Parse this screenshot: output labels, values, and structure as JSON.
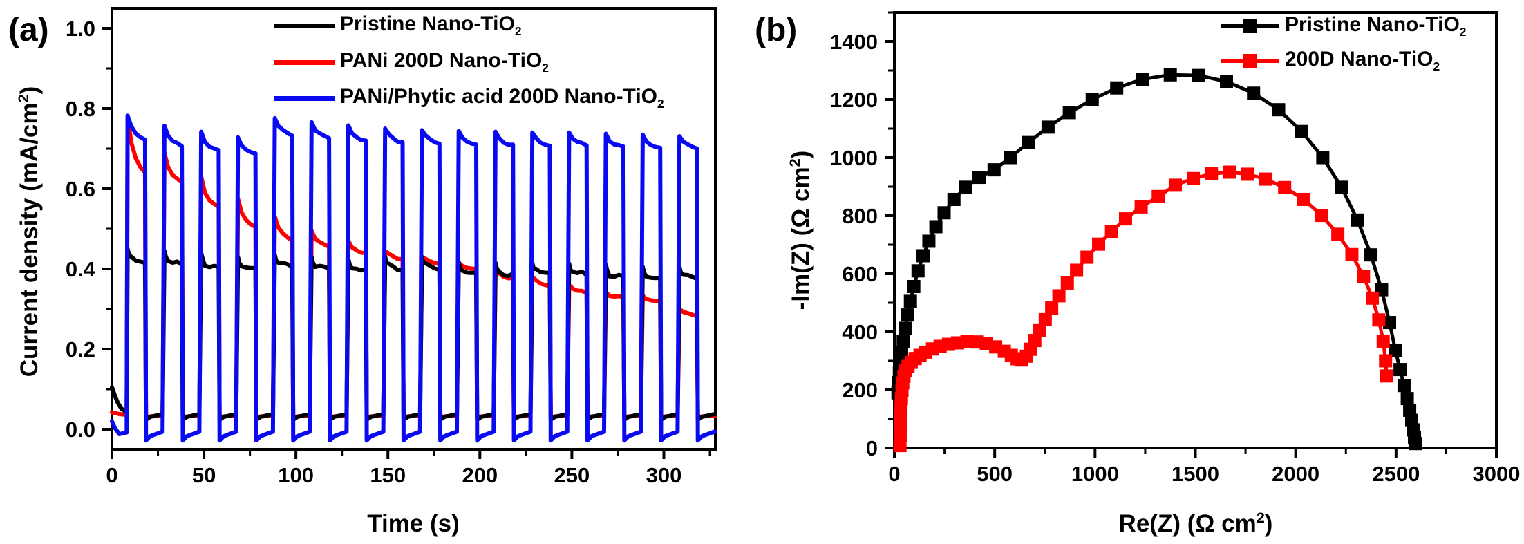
{
  "figure": {
    "background": "#ffffff"
  },
  "chart_data": [
    {
      "type": "line",
      "panel_label": "(a)",
      "title": "",
      "xlabel": {
        "pre": "Time (s)",
        "sup": "",
        "post": ""
      },
      "ylabel": {
        "pre": "Current density (mA/cm",
        "sup": "2",
        "post": ")"
      },
      "xlim": [
        0,
        328
      ],
      "ylim": [
        -0.05,
        1.05
      ],
      "grid": false,
      "legend_position": "top-right-inside",
      "x_major_ticks": [
        0,
        50,
        100,
        150,
        200,
        250,
        300
      ],
      "x_major_labels": [
        "0",
        "50",
        "100",
        "150",
        "200",
        "250",
        "300"
      ],
      "x_minor_ticks": [
        25,
        75,
        125,
        175,
        225,
        275,
        325
      ],
      "y_major_ticks": [
        0.0,
        0.2,
        0.4,
        0.6,
        0.8,
        1.0
      ],
      "y_major_labels": [
        "0.0",
        "0.2",
        "0.4",
        "0.6",
        "0.8",
        "1.0"
      ],
      "y_minor_ticks": [
        0.1,
        0.3,
        0.5,
        0.7,
        0.9
      ],
      "light_chopping": {
        "first_on_s": 8,
        "on_duration_s": 10,
        "period_s": 20,
        "cycles": 16
      },
      "series": [
        {
          "label": "Pristine Nano-TiO",
          "label_sub": "2",
          "color": "#000000",
          "line_width": 6,
          "off_level": 0.038,
          "off_dip": 0.024,
          "on_spike": 0.015,
          "noise": 0.008,
          "pre": [
            [
              0,
              0.105
            ],
            [
              1.5,
              0.085
            ],
            [
              3,
              0.068
            ],
            [
              5,
              0.052
            ],
            [
              8,
              0.042
            ]
          ],
          "pulses": [
            [
              8,
              18,
              0.435,
              0.415
            ],
            [
              28,
              38,
              0.43,
              0.41
            ],
            [
              48,
              58,
              0.425,
              0.405
            ],
            [
              68,
              78,
              0.415,
              0.402
            ],
            [
              88,
              98,
              0.42,
              0.405
            ],
            [
              108,
              118,
              0.415,
              0.4
            ],
            [
              128,
              138,
              0.41,
              0.4
            ],
            [
              148,
              158,
              0.415,
              0.4
            ],
            [
              168,
              178,
              0.415,
              0.398
            ],
            [
              188,
              198,
              0.402,
              0.39
            ],
            [
              208,
              218,
              0.4,
              0.388
            ],
            [
              228,
              238,
              0.4,
              0.39
            ],
            [
              248,
              258,
              0.398,
              0.385
            ],
            [
              268,
              278,
              0.395,
              0.382
            ],
            [
              288,
              298,
              0.39,
              0.378
            ],
            [
              308,
              318,
              0.39,
              0.375
            ]
          ]
        },
        {
          "label": "PANi 200D Nano-TiO",
          "label_sub": "2",
          "color": "#fe0000",
          "line_width": 6,
          "off_level": 0.034,
          "off_dip": 0.03,
          "on_spike": 0,
          "noise": 0.004,
          "pre": [
            [
              0,
              0.042
            ],
            [
              4,
              0.038
            ],
            [
              8,
              0.036
            ]
          ],
          "pulses": [
            [
              8,
              18,
              0.78,
              0.64
            ],
            [
              28,
              38,
              0.69,
              0.615
            ],
            [
              48,
              58,
              0.63,
              0.555
            ],
            [
              68,
              78,
              0.575,
              0.505
            ],
            [
              88,
              98,
              0.53,
              0.47
            ],
            [
              108,
              118,
              0.495,
              0.455
            ],
            [
              128,
              138,
              0.47,
              0.44
            ],
            [
              148,
              158,
              0.445,
              0.425
            ],
            [
              168,
              178,
              0.43,
              0.412
            ],
            [
              188,
              198,
              0.415,
              0.4
            ],
            [
              208,
              218,
              0.4,
              0.378
            ],
            [
              228,
              238,
              0.38,
              0.358
            ],
            [
              248,
              258,
              0.36,
              0.34
            ],
            [
              268,
              278,
              0.342,
              0.33
            ],
            [
              288,
              298,
              0.333,
              0.32
            ],
            [
              308,
              318,
              0.3,
              0.282
            ]
          ]
        },
        {
          "label": "PANi/Phytic acid 200D Nano-TiO",
          "label_sub": "2",
          "color": "#0a0af2",
          "line_width": 6,
          "off_level": -0.006,
          "off_dip": -0.028,
          "on_spike": 0,
          "noise": 0.004,
          "pre": [
            [
              0,
              0.02
            ],
            [
              1.5,
              0.004
            ],
            [
              4,
              -0.012
            ],
            [
              8,
              -0.008
            ]
          ],
          "pulses": [
            [
              8,
              18,
              0.782,
              0.722
            ],
            [
              28,
              38,
              0.757,
              0.706
            ],
            [
              48,
              58,
              0.742,
              0.696
            ],
            [
              68,
              78,
              0.728,
              0.688
            ],
            [
              88,
              98,
              0.776,
              0.732
            ],
            [
              108,
              118,
              0.766,
              0.726
            ],
            [
              128,
              138,
              0.758,
              0.72
            ],
            [
              148,
              158,
              0.75,
              0.716
            ],
            [
              168,
              178,
              0.746,
              0.712
            ],
            [
              188,
              198,
              0.744,
              0.71
            ],
            [
              208,
              218,
              0.742,
              0.71
            ],
            [
              228,
              238,
              0.74,
              0.707
            ],
            [
              248,
              258,
              0.74,
              0.708
            ],
            [
              268,
              278,
              0.737,
              0.705
            ],
            [
              288,
              298,
              0.735,
              0.702
            ],
            [
              308,
              318,
              0.731,
              0.7
            ]
          ]
        }
      ]
    },
    {
      "type": "scatter-line",
      "panel_label": "(b)",
      "title": "",
      "xlabel": {
        "pre": "Re(Z) (Ω cm",
        "sup": "2",
        "post": ")"
      },
      "ylabel": {
        "pre": "-Im(Z) (Ω cm",
        "sup": "2",
        "post": ")"
      },
      "xlim": [
        0,
        3000
      ],
      "ylim": [
        0,
        1500
      ],
      "grid": false,
      "legend_position": "top-right-inside",
      "x_major_ticks": [
        0,
        500,
        1000,
        1500,
        2000,
        2500,
        3000
      ],
      "x_major_labels": [
        "0",
        "500",
        "1000",
        "1500",
        "2000",
        "2500",
        "3000"
      ],
      "x_minor_ticks": [
        250,
        750,
        1250,
        1750,
        2250,
        2750
      ],
      "y_major_ticks": [
        0,
        200,
        400,
        600,
        800,
        1000,
        1200,
        1400
      ],
      "y_major_labels": [
        "0",
        "200",
        "400",
        "600",
        "800",
        "1000",
        "1200",
        "1400"
      ],
      "y_minor_ticks": [
        100,
        300,
        500,
        700,
        900,
        1100,
        1300,
        1500
      ],
      "series": [
        {
          "label": "Pristine Nano-TiO",
          "label_sub": "2",
          "color": "#000000",
          "marker": "square",
          "marker_size": 19,
          "line_width": 5,
          "points": [
            [
              18,
              190
            ],
            [
              21,
              225
            ],
            [
              25,
              258
            ],
            [
              30,
              292
            ],
            [
              36,
              328
            ],
            [
              44,
              368
            ],
            [
              54,
              412
            ],
            [
              66,
              458
            ],
            [
              80,
              505
            ],
            [
              97,
              556
            ],
            [
              118,
              610
            ],
            [
              143,
              662
            ],
            [
              172,
              712
            ],
            [
              207,
              762
            ],
            [
              248,
              810
            ],
            [
              297,
              856
            ],
            [
              355,
              898
            ],
            [
              422,
              932
            ],
            [
              497,
              958
            ],
            [
              578,
              1000
            ],
            [
              668,
              1052
            ],
            [
              766,
              1105
            ],
            [
              872,
              1155
            ],
            [
              986,
              1200
            ],
            [
              1108,
              1240
            ],
            [
              1238,
              1270
            ],
            [
              1375,
              1285
            ],
            [
              1515,
              1283
            ],
            [
              1655,
              1262
            ],
            [
              1790,
              1222
            ],
            [
              1915,
              1165
            ],
            [
              2030,
              1090
            ],
            [
              2135,
              1000
            ],
            [
              2228,
              898
            ],
            [
              2308,
              785
            ],
            [
              2375,
              665
            ],
            [
              2428,
              545
            ],
            [
              2468,
              432
            ],
            [
              2497,
              335
            ],
            [
              2520,
              270
            ],
            [
              2540,
              215
            ],
            [
              2556,
              170
            ],
            [
              2568,
              130
            ],
            [
              2578,
              95
            ],
            [
              2586,
              62
            ],
            [
              2592,
              35
            ],
            [
              2596,
              15
            ]
          ]
        },
        {
          "label": "200D Nano-TiO",
          "label_sub": "2",
          "color": "#fe0000",
          "marker": "square",
          "marker_size": 19,
          "line_width": 5,
          "points": [
            [
              28,
              8
            ],
            [
              29,
              42
            ],
            [
              30,
              75
            ],
            [
              31,
              108
            ],
            [
              33,
              140
            ],
            [
              35,
              170
            ],
            [
              38,
              198
            ],
            [
              42,
              224
            ],
            [
              48,
              247
            ],
            [
              56,
              266
            ],
            [
              68,
              281
            ],
            [
              84,
              295
            ],
            [
              104,
              308
            ],
            [
              128,
              319
            ],
            [
              156,
              330
            ],
            [
              190,
              341
            ],
            [
              228,
              350
            ],
            [
              270,
              357
            ],
            [
              315,
              362
            ],
            [
              362,
              366
            ],
            [
              410,
              365
            ],
            [
              458,
              359
            ],
            [
              505,
              348
            ],
            [
              548,
              333
            ],
            [
              583,
              319
            ],
            [
              612,
              307
            ],
            [
              635,
              303
            ],
            [
              658,
              316
            ],
            [
              678,
              340
            ],
            [
              700,
              370
            ],
            [
              724,
              404
            ],
            [
              752,
              442
            ],
            [
              784,
              482
            ],
            [
              820,
              524
            ],
            [
              862,
              568
            ],
            [
              908,
              612
            ],
            [
              960,
              657
            ],
            [
              1018,
              702
            ],
            [
              1082,
              746
            ],
            [
              1152,
              789
            ],
            [
              1230,
              830
            ],
            [
              1315,
              866
            ],
            [
              1400,
              905
            ],
            [
              1490,
              928
            ],
            [
              1580,
              944
            ],
            [
              1670,
              950
            ],
            [
              1760,
              943
            ],
            [
              1850,
              926
            ],
            [
              1945,
              897
            ],
            [
              2040,
              856
            ],
            [
              2130,
              801
            ],
            [
              2210,
              736
            ],
            [
              2280,
              666
            ],
            [
              2338,
              591
            ],
            [
              2382,
              516
            ],
            [
              2414,
              441
            ],
            [
              2436,
              368
            ],
            [
              2448,
              300
            ],
            [
              2453,
              248
            ]
          ]
        }
      ]
    }
  ]
}
